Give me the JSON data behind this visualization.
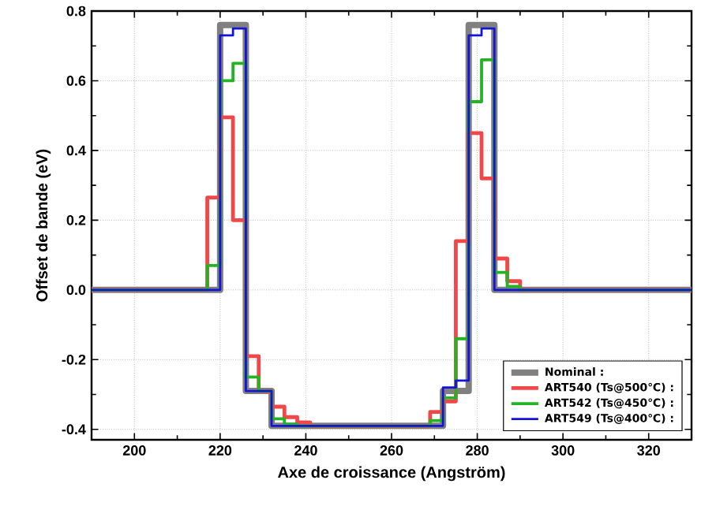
{
  "chart_data": {
    "type": "step",
    "xlabel": "Axe de croissance (Angström)",
    "ylabel": "Offset de bande (eV)",
    "xlim": [
      190,
      330
    ],
    "ylim": [
      -0.43,
      0.8
    ],
    "xticks": [
      200,
      220,
      240,
      260,
      280,
      300,
      320
    ],
    "yticks": [
      -0.4,
      -0.2,
      {
        "value": 0,
        "label": "0.0"
      },
      0.2,
      0.4,
      0.6,
      0.8
    ],
    "grid": true,
    "legend": "bottom right",
    "series": [
      {
        "name": "Nominal :",
        "color": "#808080",
        "x": [
          190,
          220,
          226,
          232,
          272,
          278,
          284,
          330
        ],
        "values": [
          0,
          0.76,
          -0.29,
          -0.39,
          -0.29,
          0.76,
          0,
          0
        ]
      },
      {
        "name": "ART540 (Ts@500℃) :",
        "color": "#f04848",
        "x": [
          190,
          217,
          220,
          223,
          226,
          229,
          232,
          235,
          238,
          241,
          269,
          272,
          275,
          278,
          281,
          284,
          287,
          290,
          330
        ],
        "values": [
          0,
          0.265,
          0.495,
          0.2,
          -0.19,
          -0.29,
          -0.335,
          -0.365,
          -0.38,
          -0.39,
          -0.35,
          -0.32,
          0.14,
          0.45,
          0.32,
          0.09,
          0.025,
          0,
          0
        ]
      },
      {
        "name": "ART542 (Ts@450℃) :",
        "color": "#22b422",
        "x": [
          190,
          217,
          220,
          223,
          226,
          229,
          232,
          235,
          238,
          269,
          272,
          275,
          278,
          281,
          284,
          287,
          290,
          330
        ],
        "values": [
          0,
          0.07,
          0.6,
          0.65,
          -0.25,
          -0.29,
          -0.37,
          -0.385,
          -0.39,
          -0.375,
          -0.31,
          -0.14,
          0.54,
          0.66,
          0.05,
          0.01,
          0,
          0
        ]
      },
      {
        "name": "ART549 (Ts@400℃) :",
        "color": "#1414d8",
        "x": [
          190,
          220,
          223,
          226,
          232,
          272,
          275,
          278,
          281,
          284,
          330
        ],
        "values": [
          0,
          0.73,
          0.75,
          -0.29,
          -0.39,
          -0.28,
          -0.26,
          0.73,
          0.75,
          0,
          0
        ]
      }
    ]
  }
}
